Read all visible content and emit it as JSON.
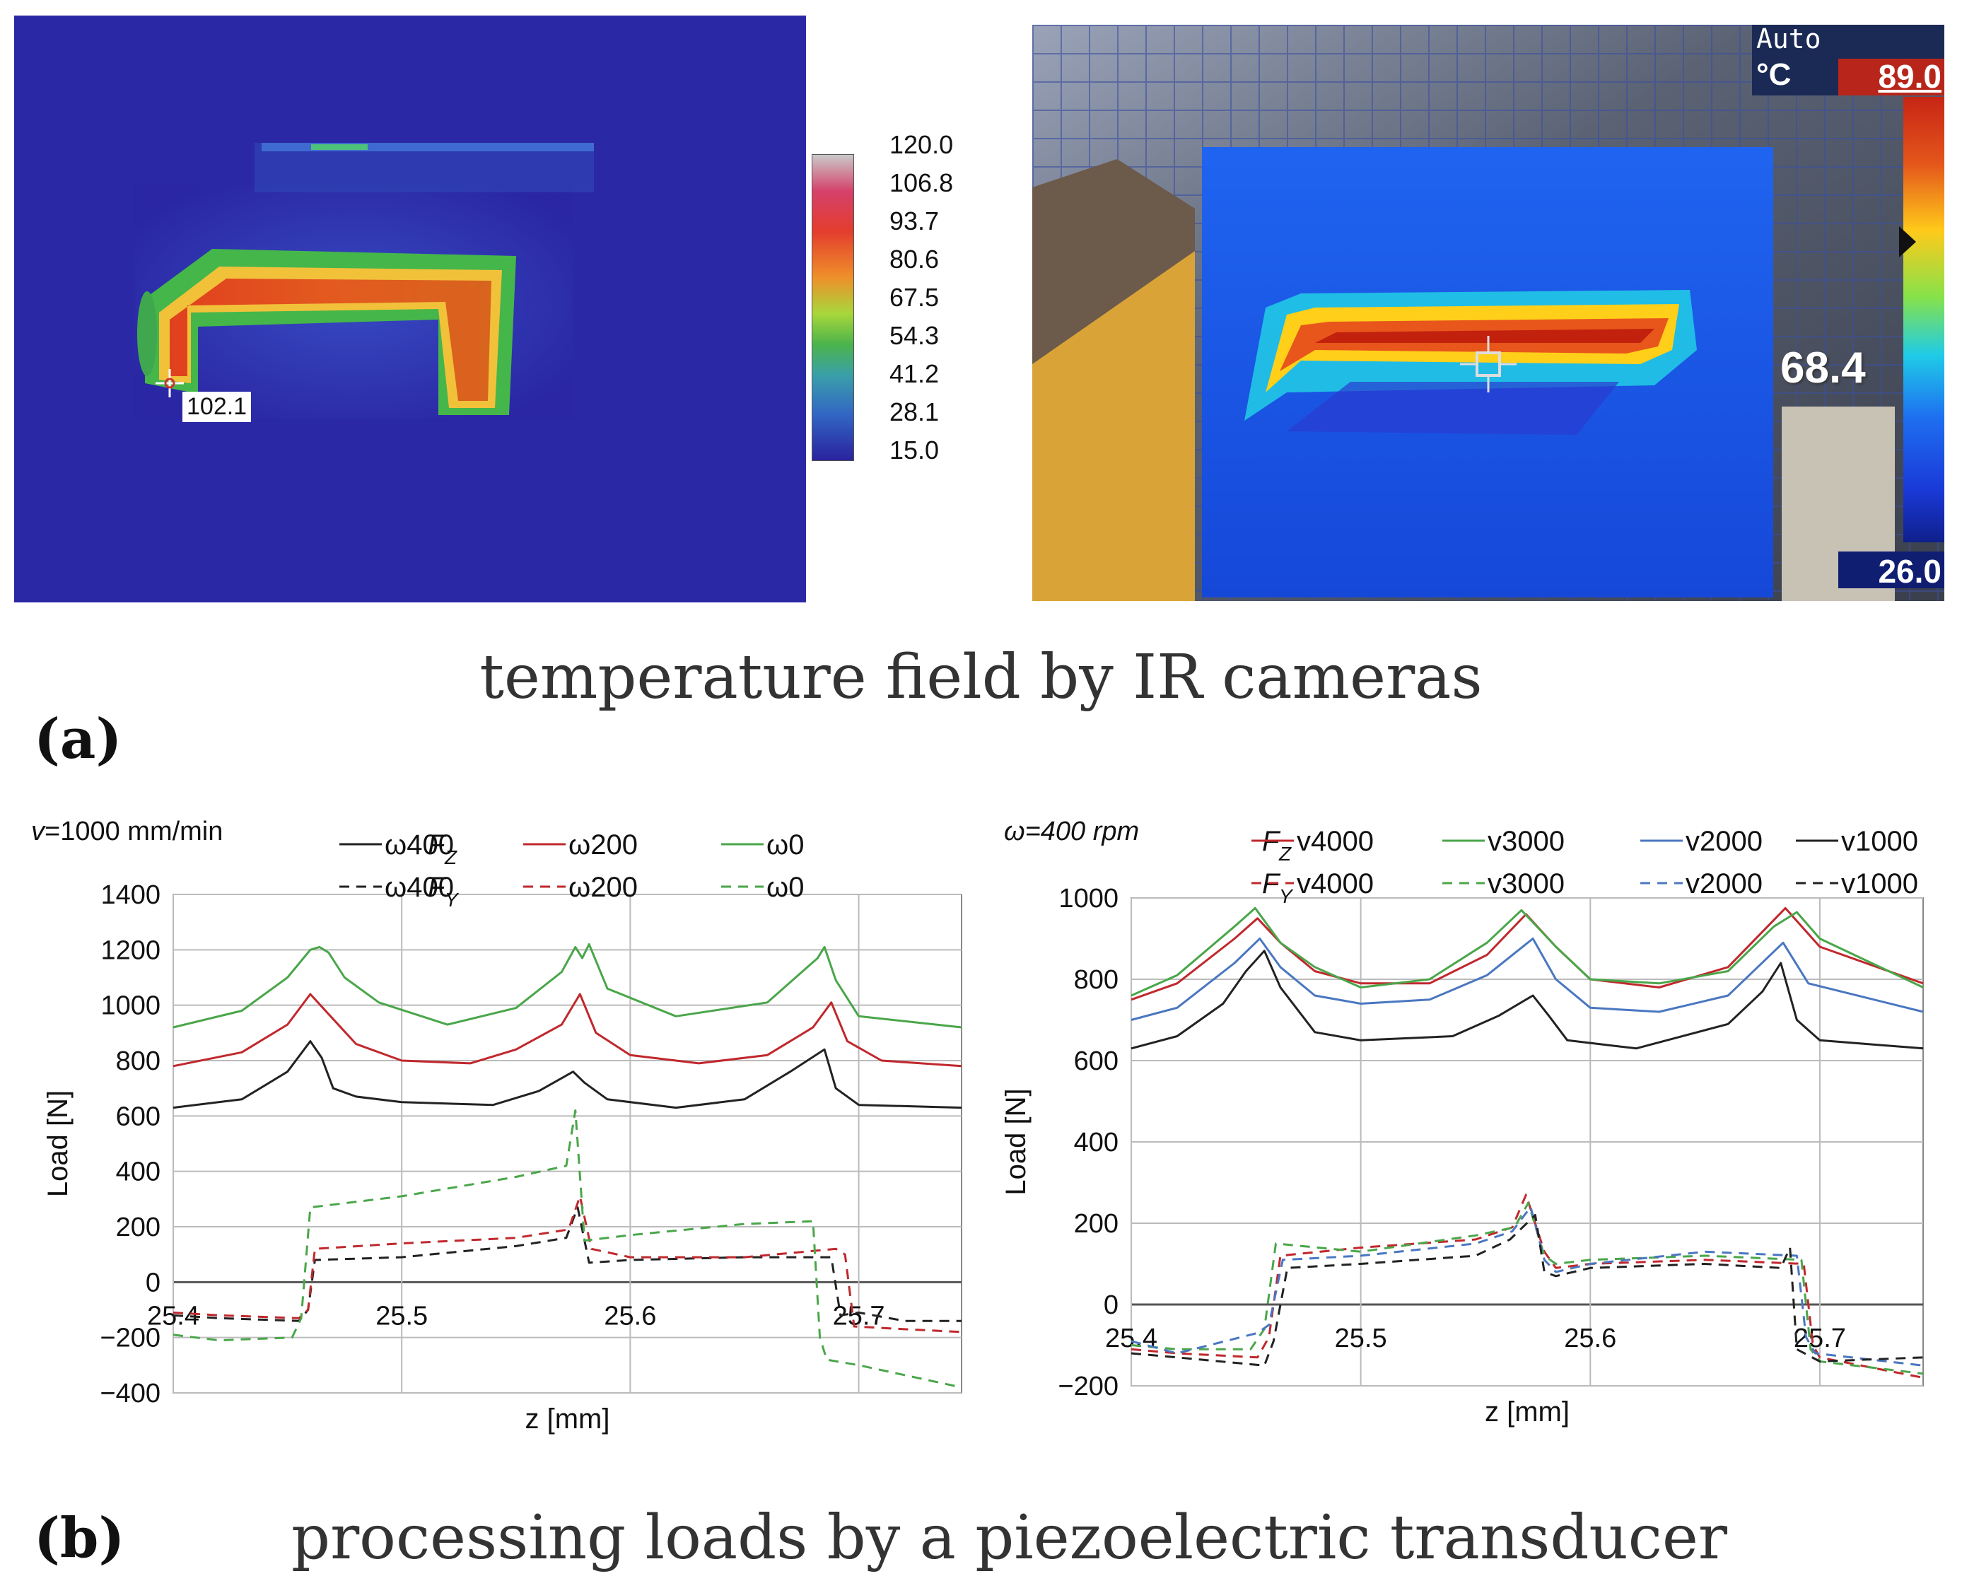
{
  "panel_a": {
    "letter": "(a)",
    "caption": "temperature field by IR cameras",
    "left_camera": {
      "scale_labels": [
        "120.0",
        "106.8",
        "93.7",
        "80.6",
        "67.5",
        "54.3",
        "41.2",
        "28.1",
        "15.0"
      ],
      "spot_value": "102.1"
    },
    "right_camera": {
      "mode": "Auto",
      "unit": "°C",
      "max_value": "89.0",
      "min_value": "26.0",
      "spot_value": "68.4"
    }
  },
  "panel_b": {
    "letter": "(b)",
    "caption": "processing loads by a piezoelectric transducer"
  },
  "chart_data": [
    {
      "type": "line",
      "title": "",
      "condition_label": "v=1000 mm/min",
      "condition_symbol": "v",
      "condition_rest": "=1000 mm/min",
      "xlabel": "z [mm]",
      "ylabel": "Load [N]",
      "xlim": [
        25.4,
        25.745
      ],
      "ylim": [
        -400,
        1400
      ],
      "xticks": [
        "25.4",
        "25.5",
        "25.6",
        "25.7"
      ],
      "yticks": [
        "1400",
        "1200",
        "1000",
        "800",
        "600",
        "400",
        "200",
        "0",
        "−200",
        "−400"
      ],
      "legend": {
        "row_labels": [
          "F",
          "F"
        ],
        "row_subscripts": [
          "Z",
          "Y"
        ],
        "entries": [
          "ω400",
          "ω200",
          "ω0"
        ]
      },
      "series": [
        {
          "name": "Fz ω400",
          "color": "#222222",
          "dash": false,
          "x": [
            25.4,
            25.43,
            25.45,
            25.46,
            25.465,
            25.47,
            25.48,
            25.5,
            25.54,
            25.56,
            25.575,
            25.58,
            25.59,
            25.62,
            25.65,
            25.67,
            25.685,
            25.69,
            25.7,
            25.745
          ],
          "y": [
            630,
            660,
            760,
            870,
            810,
            700,
            670,
            650,
            640,
            690,
            760,
            720,
            660,
            630,
            660,
            760,
            840,
            700,
            640,
            630
          ]
        },
        {
          "name": "Fz ω200",
          "color": "#c0282d",
          "dash": false,
          "x": [
            25.4,
            25.43,
            25.45,
            25.46,
            25.47,
            25.48,
            25.5,
            25.53,
            25.55,
            25.57,
            25.578,
            25.585,
            25.6,
            25.63,
            25.66,
            25.68,
            25.688,
            25.695,
            25.71,
            25.745
          ],
          "y": [
            780,
            830,
            930,
            1040,
            950,
            860,
            800,
            790,
            840,
            930,
            1040,
            900,
            820,
            790,
            820,
            920,
            1010,
            870,
            800,
            780
          ]
        },
        {
          "name": "Fz ω0",
          "color": "#4aa64a",
          "dash": false,
          "x": [
            25.4,
            25.43,
            25.45,
            25.46,
            25.464,
            25.468,
            25.475,
            25.49,
            25.52,
            25.55,
            25.57,
            25.576,
            25.579,
            25.582,
            25.59,
            25.62,
            25.66,
            25.682,
            25.685,
            25.69,
            25.7,
            25.745
          ],
          "y": [
            920,
            980,
            1100,
            1200,
            1210,
            1190,
            1100,
            1010,
            930,
            990,
            1120,
            1210,
            1170,
            1220,
            1060,
            960,
            1010,
            1170,
            1210,
            1090,
            960,
            920
          ]
        },
        {
          "name": "Fy ω400",
          "color": "#222222",
          "dash": true,
          "x": [
            25.4,
            25.42,
            25.455,
            25.459,
            25.462,
            25.5,
            25.55,
            25.572,
            25.577,
            25.582,
            25.6,
            25.65,
            25.688,
            25.692,
            25.7,
            25.72,
            25.745
          ],
          "y": [
            -120,
            -130,
            -140,
            -100,
            80,
            90,
            130,
            160,
            270,
            70,
            80,
            90,
            90,
            -120,
            -110,
            -140,
            -140
          ]
        },
        {
          "name": "Fy ω200",
          "color": "#c0282d",
          "dash": true,
          "x": [
            25.4,
            25.42,
            25.455,
            25.459,
            25.462,
            25.5,
            25.55,
            25.573,
            25.578,
            25.583,
            25.6,
            25.65,
            25.69,
            25.694,
            25.698,
            25.72,
            25.745
          ],
          "y": [
            -110,
            -120,
            -130,
            -100,
            120,
            140,
            160,
            190,
            310,
            120,
            90,
            90,
            120,
            100,
            -160,
            -170,
            -180
          ]
        },
        {
          "name": "Fy ω0",
          "color": "#4aa64a",
          "dash": true,
          "x": [
            25.4,
            25.42,
            25.452,
            25.456,
            25.46,
            25.5,
            25.55,
            25.572,
            25.576,
            25.58,
            25.6,
            25.65,
            25.68,
            25.683,
            25.686,
            25.7,
            25.745
          ],
          "y": [
            -190,
            -210,
            -200,
            -130,
            270,
            310,
            380,
            420,
            620,
            150,
            170,
            210,
            220,
            -200,
            -280,
            -300,
            -380
          ]
        }
      ]
    },
    {
      "type": "line",
      "title": "",
      "condition_label": "ω=400 rpm",
      "xlabel": "z [mm]",
      "ylabel": "Load [N]",
      "xlim": [
        25.4,
        25.745
      ],
      "ylim": [
        -200,
        1000
      ],
      "xticks": [
        "25.4",
        "25.5",
        "25.6",
        "25.7"
      ],
      "yticks": [
        "1000",
        "800",
        "600",
        "400",
        "200",
        "0",
        "−200"
      ],
      "legend": {
        "row_labels": [
          "F",
          "F"
        ],
        "row_subscripts": [
          "Z",
          "Y"
        ],
        "entries": [
          "v4000",
          "v3000",
          "v2000",
          "v1000"
        ]
      },
      "series": [
        {
          "name": "Fz v4000",
          "color": "#c0282d",
          "dash": false,
          "x": [
            25.4,
            25.42,
            25.445,
            25.455,
            25.465,
            25.48,
            25.5,
            25.53,
            25.555,
            25.572,
            25.585,
            25.6,
            25.63,
            25.66,
            25.685,
            25.7,
            25.745
          ],
          "y": [
            750,
            790,
            900,
            950,
            890,
            820,
            790,
            790,
            860,
            960,
            880,
            800,
            780,
            830,
            975,
            880,
            790
          ]
        },
        {
          "name": "Fz v3000",
          "color": "#4aa64a",
          "dash": false,
          "x": [
            25.4,
            25.42,
            25.445,
            25.454,
            25.465,
            25.48,
            25.5,
            25.53,
            25.555,
            25.57,
            25.585,
            25.6,
            25.63,
            25.66,
            25.68,
            25.69,
            25.7,
            25.745
          ],
          "y": [
            760,
            810,
            930,
            975,
            890,
            830,
            780,
            800,
            890,
            970,
            880,
            800,
            790,
            820,
            930,
            965,
            900,
            780
          ]
        },
        {
          "name": "Fz v2000",
          "color": "#4a77c0",
          "dash": false,
          "x": [
            25.4,
            25.42,
            25.445,
            25.456,
            25.465,
            25.48,
            25.5,
            25.53,
            25.555,
            25.575,
            25.585,
            25.6,
            25.63,
            25.66,
            25.684,
            25.695,
            25.745
          ],
          "y": [
            700,
            730,
            840,
            900,
            830,
            760,
            740,
            750,
            810,
            900,
            800,
            730,
            720,
            760,
            890,
            790,
            720
          ]
        },
        {
          "name": "Fz v1000",
          "color": "#222222",
          "dash": false,
          "x": [
            25.4,
            25.42,
            25.44,
            25.45,
            25.458,
            25.465,
            25.48,
            25.5,
            25.54,
            25.56,
            25.575,
            25.582,
            25.59,
            25.62,
            25.66,
            25.675,
            25.683,
            25.69,
            25.7,
            25.745
          ],
          "y": [
            630,
            660,
            740,
            820,
            870,
            780,
            670,
            650,
            660,
            710,
            760,
            710,
            650,
            630,
            690,
            770,
            840,
            700,
            650,
            630
          ]
        },
        {
          "name": "Fy v4000",
          "color": "#c0282d",
          "dash": true,
          "x": [
            25.4,
            25.42,
            25.455,
            25.46,
            25.465,
            25.5,
            25.55,
            25.566,
            25.572,
            25.58,
            25.585,
            25.6,
            25.65,
            25.693,
            25.697,
            25.7,
            25.745
          ],
          "y": [
            -110,
            -120,
            -130,
            -80,
            120,
            140,
            160,
            190,
            270,
            130,
            90,
            100,
            110,
            100,
            -100,
            -130,
            -180
          ]
        },
        {
          "name": "Fy v3000",
          "color": "#4aa64a",
          "dash": true,
          "x": [
            25.4,
            25.42,
            25.452,
            25.458,
            25.463,
            25.5,
            25.55,
            25.567,
            25.573,
            25.58,
            25.585,
            25.6,
            25.65,
            25.692,
            25.696,
            25.7,
            25.745
          ],
          "y": [
            -100,
            -110,
            -110,
            -60,
            150,
            130,
            170,
            190,
            250,
            120,
            100,
            110,
            120,
            110,
            -110,
            -140,
            -170
          ]
        },
        {
          "name": "Fy v2000",
          "color": "#4a77c0",
          "dash": true,
          "x": [
            25.4,
            25.42,
            25.455,
            25.46,
            25.466,
            25.5,
            25.55,
            25.566,
            25.574,
            25.58,
            25.585,
            25.6,
            25.65,
            25.69,
            25.694,
            25.698,
            25.745
          ],
          "y": [
            -90,
            -120,
            -70,
            -50,
            110,
            120,
            150,
            180,
            240,
            110,
            80,
            100,
            130,
            120,
            -80,
            -120,
            -150
          ]
        },
        {
          "name": "Fy v1000",
          "color": "#222222",
          "dash": true,
          "x": [
            25.4,
            25.42,
            25.458,
            25.462,
            25.468,
            25.5,
            25.55,
            25.565,
            25.576,
            25.58,
            25.585,
            25.6,
            25.65,
            25.683,
            25.687,
            25.69,
            25.7,
            25.745
          ],
          "y": [
            -120,
            -130,
            -150,
            -90,
            90,
            100,
            120,
            160,
            220,
            80,
            70,
            90,
            100,
            90,
            140,
            -110,
            -140,
            -130
          ]
        }
      ]
    }
  ],
  "colors": {
    "ir_background": "#2c2aa8",
    "black": "#222222",
    "red": "#c0282d",
    "green": "#4aa64a",
    "blue": "#4a77c0"
  }
}
